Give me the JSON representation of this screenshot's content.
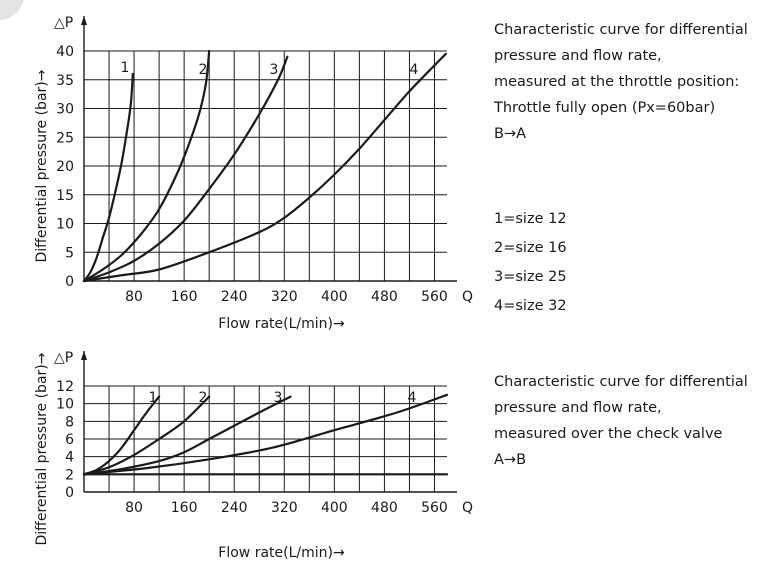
{
  "chart_data": [
    {
      "type": "line",
      "title": "",
      "xlabel": "Flow rate(L/min)→",
      "ylabel": "Differential pressure (bar)→",
      "y_symbol": "△P",
      "x_symbol": "Q",
      "xlim": [
        0,
        580
      ],
      "ylim": [
        0,
        40
      ],
      "x_ticks": [
        80,
        160,
        240,
        320,
        400,
        480,
        560
      ],
      "y_ticks": [
        0,
        5,
        10,
        15,
        20,
        25,
        30,
        35,
        40
      ],
      "x_grid_step": 40,
      "grid": true,
      "series": [
        {
          "name": "1",
          "x": [
            0,
            10,
            20,
            30,
            40,
            50,
            60,
            70,
            75,
            78
          ],
          "y": [
            0,
            1.5,
            4,
            7.5,
            11,
            15.5,
            20.5,
            27,
            31,
            36
          ]
        },
        {
          "name": "2",
          "x": [
            0,
            30,
            60,
            90,
            120,
            150,
            170,
            185,
            195,
            200
          ],
          "y": [
            0,
            2,
            4.5,
            8,
            12.5,
            19,
            24.5,
            29.5,
            34.5,
            40
          ]
        },
        {
          "name": "3",
          "x": [
            0,
            40,
            80,
            120,
            160,
            200,
            240,
            280,
            310,
            325
          ],
          "y": [
            0,
            1.5,
            3.5,
            6.5,
            10.5,
            16,
            22,
            29,
            35,
            39
          ]
        },
        {
          "name": "4",
          "x": [
            0,
            60,
            120,
            200,
            280,
            320,
            360,
            400,
            440,
            480,
            520,
            560,
            578
          ],
          "y": [
            0,
            1,
            2,
            5,
            8.5,
            11,
            14.5,
            18.5,
            23,
            28,
            33,
            37.5,
            39.5
          ]
        }
      ]
    },
    {
      "type": "line",
      "title": "",
      "xlabel": "Flow rate(L/min)→",
      "ylabel": "Differential pressure (bar)→",
      "y_symbol": "△P",
      "x_symbol": "Q",
      "xlim": [
        0,
        580
      ],
      "ylim": [
        0,
        12
      ],
      "x_ticks": [
        80,
        160,
        240,
        320,
        400,
        480,
        560
      ],
      "y_ticks": [
        0,
        2,
        4,
        6,
        8,
        10,
        12
      ],
      "x_grid_step": 40,
      "grid": true,
      "baseline": {
        "x": [
          0,
          580
        ],
        "y": [
          2,
          2
        ]
      },
      "series": [
        {
          "name": "1",
          "x": [
            0,
            20,
            40,
            60,
            80,
            100,
            120
          ],
          "y": [
            2,
            2.5,
            3.5,
            5,
            7,
            9,
            10.8
          ]
        },
        {
          "name": "2",
          "x": [
            0,
            40,
            80,
            120,
            160,
            200
          ],
          "y": [
            2,
            2.8,
            4.2,
            6,
            8,
            10.8
          ]
        },
        {
          "name": "3",
          "x": [
            0,
            60,
            120,
            160,
            200,
            240,
            280,
            330
          ],
          "y": [
            2,
            2.6,
            3.5,
            4.5,
            6,
            7.5,
            9,
            10.8
          ]
        },
        {
          "name": "4",
          "x": [
            0,
            100,
            200,
            300,
            400,
            500,
            580
          ],
          "y": [
            2,
            2.7,
            3.7,
            5,
            7,
            9,
            11
          ]
        }
      ]
    }
  ],
  "description_top": {
    "lines": [
      "Characteristic curve for differential",
      "pressure and flow rate,",
      "measured at the throttle position:",
      "Throttle fully open (Px=60bar)",
      "B→A"
    ]
  },
  "legend": {
    "items": [
      "1=size 12",
      "2=size 16",
      "3=size 25",
      "4=size 32"
    ]
  },
  "description_bottom": {
    "lines": [
      "Characteristic curve for differential",
      "pressure and flow rate,",
      "measured over the check valve",
      "A→B"
    ]
  }
}
